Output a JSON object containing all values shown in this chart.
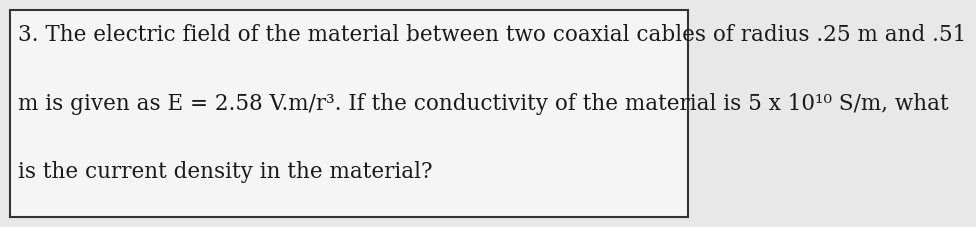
{
  "background_color": "#e8e8e8",
  "box_color": "#f5f5f5",
  "border_color": "#333333",
  "line1": "3. The electric field of the material between two coaxial cables of radius .25 m and .51",
  "line2": "m is given as E = 2.58 V.m/r³. If the conductivity of the material is 5 x 10¹⁰ S/m, what",
  "line3": "is the current density in the material?",
  "font_size": 15.5,
  "font_family": "serif",
  "text_color": "#1a1a1a",
  "fig_width": 9.21,
  "fig_height": 2.07
}
